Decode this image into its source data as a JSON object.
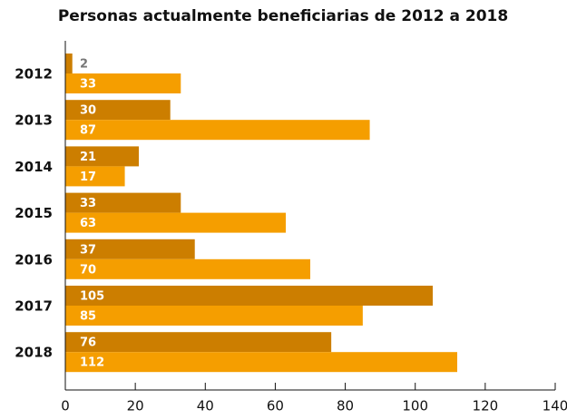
{
  "chart_data": {
    "type": "hbar",
    "title": "Personas actualmente beneficiarias de 2012 a 2018",
    "categories": [
      "2012",
      "2013",
      "2014",
      "2015",
      "2016",
      "2017",
      "2018"
    ],
    "series": [
      {
        "color": "#cc7e00",
        "values": [
          2,
          30,
          21,
          33,
          37,
          105,
          76
        ]
      },
      {
        "color": "#f59e00",
        "values": [
          33,
          87,
          17,
          63,
          70,
          85,
          112
        ]
      }
    ],
    "xlim": [
      0,
      140
    ],
    "xticks": [
      0,
      20,
      40,
      60,
      80,
      100,
      120,
      140
    ]
  }
}
